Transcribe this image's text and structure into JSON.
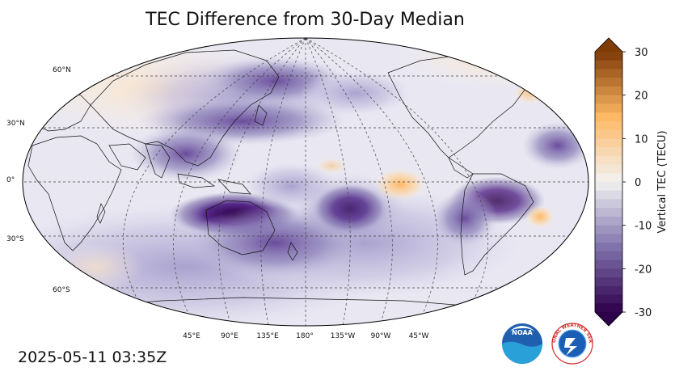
{
  "title": "TEC Difference from 30-Day Median",
  "timestamp": "2025-05-11 03:35Z",
  "colorbar": {
    "label": "Vertical TEC (TECU)",
    "min": -30,
    "max": 30,
    "ticks": [
      "30",
      "20",
      "10",
      "0",
      "-10",
      "-20",
      "-30"
    ]
  },
  "lat_labels": [
    "60°N",
    "30°N",
    "0°",
    "30°S",
    "60°S"
  ],
  "lon_labels": [
    "45°E",
    "90°E",
    "135°E",
    "180°",
    "135°W",
    "90°W",
    "45°W"
  ],
  "logos": {
    "noaa": "NOAA",
    "nws": "NATIONAL WEATHER SERVICE"
  },
  "colors": {
    "negative_strong": "#2d004b",
    "negative_mid": "#8073ac",
    "neutral": "#f2f2f2",
    "positive_mid": "#fdb863",
    "positive_strong": "#7f3b08"
  }
}
